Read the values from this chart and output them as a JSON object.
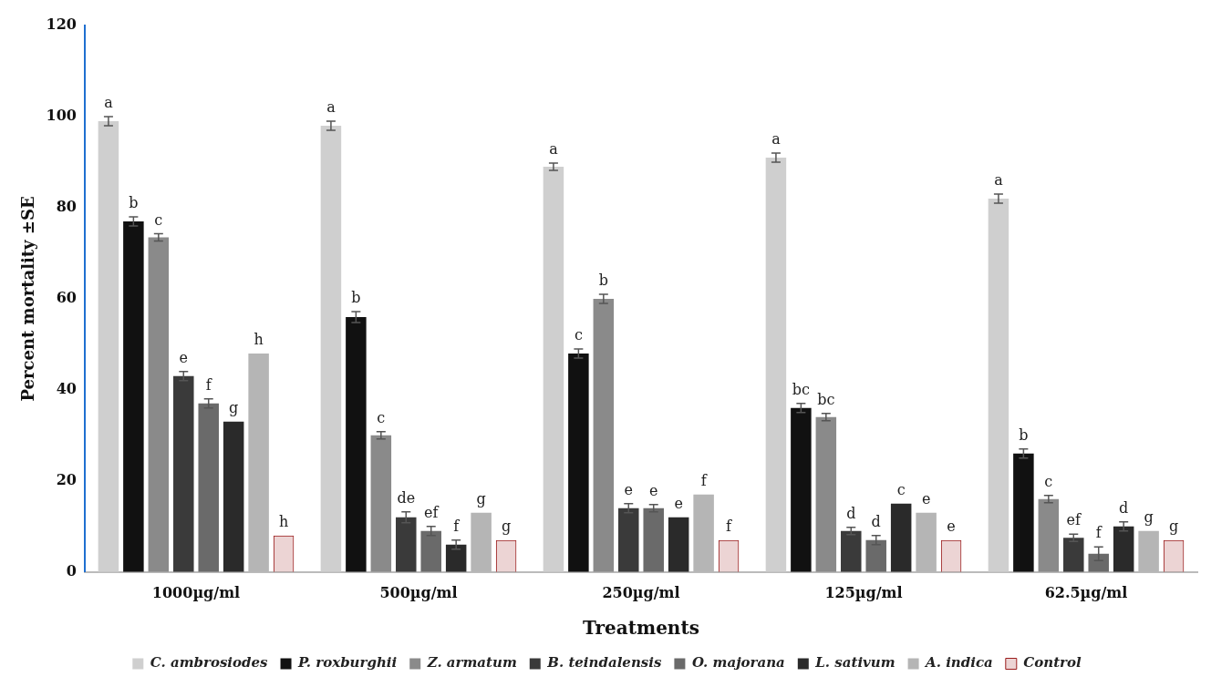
{
  "chart_data": {
    "type": "bar",
    "xlabel": "Treatments",
    "ylabel": "Percent mortality ±SE",
    "categories": [
      "1000µg/ml",
      "500µg/ml",
      "250µg/ml",
      "125µg/ml",
      "62.5µg/ml"
    ],
    "ylim": [
      0,
      120
    ],
    "yticks": [
      0,
      20,
      40,
      60,
      80,
      100,
      120
    ],
    "grid": false,
    "legend": "bottom",
    "series": [
      {
        "name": "C. ambrosiodes",
        "color": "#cfcfcf",
        "values": [
          99,
          98,
          89,
          91,
          82
        ],
        "errors": [
          1,
          1,
          0.8,
          1,
          1
        ],
        "value_labels": [
          "a",
          "a",
          "a",
          "a",
          "a"
        ]
      },
      {
        "name": "P. roxburghii",
        "color": "#111111",
        "values": [
          77,
          56,
          48,
          36,
          26
        ],
        "errors": [
          1,
          1.2,
          1,
          1,
          1
        ],
        "value_labels": [
          "b",
          "b",
          "c",
          "bc",
          "b"
        ]
      },
      {
        "name": "Z. armatum",
        "color": "#8a8a8a",
        "values": [
          73.5,
          30,
          60,
          34,
          16
        ],
        "errors": [
          0.8,
          0.8,
          1,
          0.8,
          0.8
        ],
        "value_labels": [
          "c",
          "c",
          "b",
          "bc",
          "c"
        ]
      },
      {
        "name": "B. teindalensis",
        "color": "#3a3a3a",
        "values": [
          43,
          12,
          14,
          9,
          7.5
        ],
        "errors": [
          1,
          1.2,
          1,
          0.8,
          0.8
        ],
        "value_labels": [
          "e",
          "de",
          "e",
          "d",
          "ef"
        ]
      },
      {
        "name": "O. majorana",
        "color": "#6a6a6a",
        "values": [
          37,
          9,
          14,
          7,
          4
        ],
        "errors": [
          1,
          1,
          0.8,
          1,
          1.5
        ],
        "value_labels": [
          "f",
          "ef",
          "e",
          "d",
          "f"
        ]
      },
      {
        "name": "L. sativum",
        "color": "#2a2a2a",
        "values": [
          33,
          6,
          12,
          15,
          10
        ],
        "errors": [
          null,
          1,
          null,
          null,
          1
        ],
        "value_labels": [
          "g",
          "f",
          "e",
          "c",
          "d"
        ]
      },
      {
        "name": "A. indica",
        "color": "#b5b5b5",
        "values": [
          48,
          13,
          17,
          13,
          9
        ],
        "errors": [
          null,
          null,
          null,
          null,
          null
        ],
        "value_labels": [
          "h",
          "g",
          "f",
          "e",
          "g"
        ]
      },
      {
        "name": "Control",
        "color": "#9b1c1c",
        "values": [
          8,
          7,
          7,
          7,
          7
        ],
        "value_labels": [
          "h",
          "g",
          "f",
          "e",
          "g"
        ]
      }
    ]
  }
}
